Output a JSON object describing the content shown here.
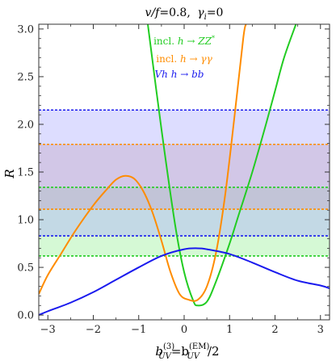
{
  "chart_data": {
    "type": "line",
    "title": "v/f=0.8, γ_i=0",
    "xlabel": "b_UV^(3)=b_UV^(EM)/2",
    "ylabel": "R",
    "xlim": [
      -3.2,
      3.2
    ],
    "ylim": [
      -0.05,
      3.05
    ],
    "xticks": [
      -3,
      -2,
      -1,
      0,
      1,
      2,
      3
    ],
    "yticks": [
      0.0,
      0.5,
      1.0,
      1.5,
      2.0,
      2.5,
      3.0
    ],
    "legend_position": "top-center",
    "series": [
      {
        "name": "incl. h → ZZ*",
        "color": "#22cc22",
        "x": [
          -0.8,
          -0.5,
          -0.2,
          0.0,
          0.2,
          0.3,
          0.5,
          0.7,
          1.0,
          1.2,
          1.5,
          1.8,
          2.0,
          2.2,
          2.46
        ],
        "y": [
          3.05,
          1.95,
          0.95,
          0.45,
          0.15,
          0.1,
          0.14,
          0.35,
          0.75,
          1.05,
          1.5,
          2.0,
          2.35,
          2.7,
          3.05
        ]
      },
      {
        "name": "incl. h → γγ",
        "color": "#ff8c00",
        "x": [
          -3.2,
          -3.0,
          -2.7,
          -2.4,
          -2.0,
          -1.7,
          -1.5,
          -1.3,
          -1.1,
          -0.9,
          -0.7,
          -0.5,
          -0.3,
          -0.1,
          0.1,
          0.3,
          0.5,
          0.7,
          0.9,
          1.1,
          1.3,
          1.36
        ],
        "y": [
          0.22,
          0.42,
          0.65,
          0.88,
          1.15,
          1.32,
          1.42,
          1.46,
          1.43,
          1.3,
          1.08,
          0.78,
          0.45,
          0.22,
          0.16,
          0.16,
          0.3,
          0.65,
          1.25,
          2.05,
          2.9,
          3.05
        ]
      },
      {
        "name": "Vh h → bb",
        "color": "#1a1aee",
        "x": [
          -3.2,
          -3.0,
          -2.5,
          -2.0,
          -1.5,
          -1.0,
          -0.5,
          0.0,
          0.3,
          0.5,
          1.0,
          1.5,
          2.0,
          2.5,
          3.0,
          3.2
        ],
        "y": [
          0.0,
          0.04,
          0.13,
          0.24,
          0.37,
          0.5,
          0.62,
          0.69,
          0.7,
          0.69,
          0.64,
          0.55,
          0.45,
          0.36,
          0.31,
          0.28
        ]
      }
    ],
    "bands": [
      {
        "name": "incl. h → ZZ*",
        "ymin": 0.62,
        "ymax": 1.34,
        "color": "#22cc22",
        "fill_color": "#90ee90"
      },
      {
        "name": "incl. h → γγ",
        "ymin": 1.11,
        "ymax": 1.79,
        "color": "#ff8c00",
        "fill_color": "#d2a09a"
      },
      {
        "name": "Vh h → bb",
        "ymin": 0.83,
        "ymax": 2.15,
        "color": "#1a1aee",
        "fill_color": "#a6a6ff"
      }
    ]
  },
  "title": {
    "v_f": "v/f",
    "v_f_value": "=0.8,",
    "gamma": "γ",
    "gamma_sub": "i",
    "gamma_value": "=0"
  },
  "axes": {
    "ylabel": "R",
    "xlabel_b1": "b",
    "xlabel_sup1": "(3)",
    "xlabel_sub1": "UV",
    "xlabel_eq": "=b",
    "xlabel_sup2": "(EM)",
    "xlabel_sub2": "UV",
    "xlabel_div": "/2"
  },
  "legend": {
    "zz_prefix": "incl. ",
    "zz_h": "h",
    "zz_arrow": " → ",
    "zz_final": "ZZ",
    "zz_star": "*",
    "gg_prefix": "incl. ",
    "gg_h": "h",
    "gg_arrow": " → ",
    "gg_final": "γγ",
    "bb_prefix": "Vh h",
    "bb_arrow": " → ",
    "bb_final": "bb"
  }
}
